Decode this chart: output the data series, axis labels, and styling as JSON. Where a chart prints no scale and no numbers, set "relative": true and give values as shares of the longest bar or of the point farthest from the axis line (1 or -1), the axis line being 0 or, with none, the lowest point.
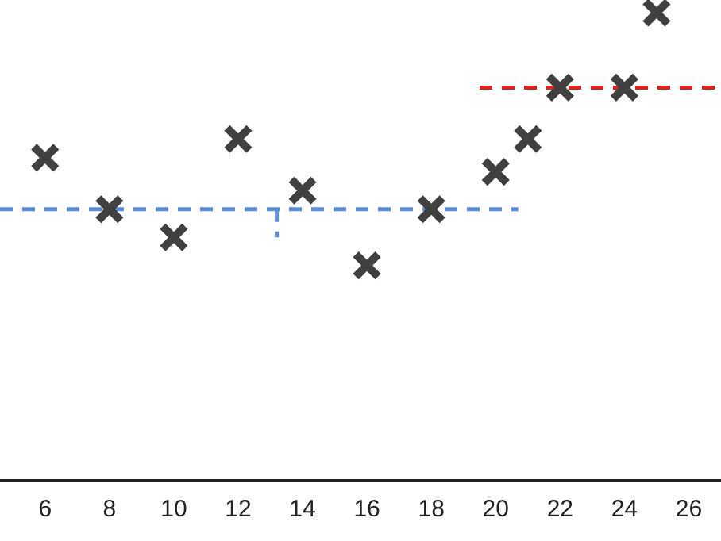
{
  "chart_data": {
    "type": "scatter",
    "relative": true,
    "tick_labels": "x",
    "xlim": [
      4.6,
      27
    ],
    "xticks": [
      6,
      8,
      10,
      12,
      14,
      16,
      18,
      20,
      22,
      24,
      26
    ],
    "series": [
      {
        "marker": "cross",
        "color": "#404040",
        "x": [
          6,
          8,
          10,
          12,
          14,
          16,
          18,
          20,
          21,
          22,
          24,
          25
        ],
        "values": [
          0.69,
          0.58,
          0.52,
          0.73,
          0.62,
          0.46,
          0.58,
          0.66,
          0.73,
          0.84,
          0.84,
          1
        ]
      },
      {
        "type": "line",
        "marker": "none",
        "color": "#5b8fd9",
        "line_style": "dashed",
        "x": [
          4.6,
          20.7
        ],
        "values": [
          0.58,
          0.58
        ]
      },
      {
        "type": "line",
        "marker": "none",
        "color": "#5b8fd9",
        "line_style": "dashed",
        "x": [
          13.2,
          13.2
        ],
        "values": [
          0.58,
          0.52
        ]
      },
      {
        "type": "line",
        "marker": "none",
        "color": "#e0201c",
        "line_style": "dashed",
        "x": [
          19.5,
          27
        ],
        "values": [
          0.84,
          0.84
        ]
      }
    ]
  }
}
